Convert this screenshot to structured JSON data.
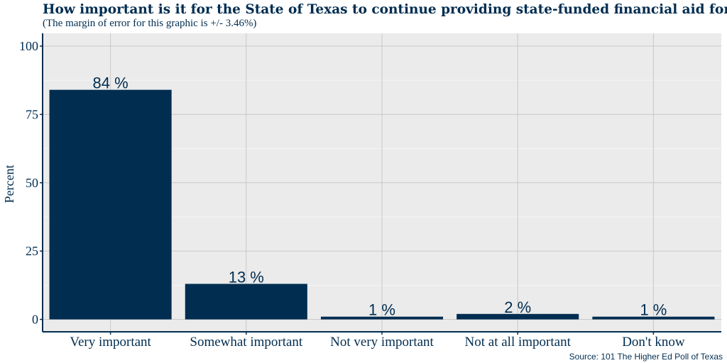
{
  "chart_data": {
    "type": "bar",
    "title": "How important is it for the State of Texas to continue providing state-funded financial aid for college students who",
    "subtitle": "(The margin of error for this graphic is +/- 3.46%)",
    "categories": [
      "Very important",
      "Somewhat important",
      "Not very important",
      "Not at all important",
      "Don't know"
    ],
    "values": [
      84,
      13,
      1,
      2,
      1
    ],
    "data_labels": [
      "84 %",
      "13 %",
      "1 %",
      "2 %",
      "1 %"
    ],
    "xlabel": "",
    "ylabel": "Percent",
    "ylim": [
      0,
      100
    ],
    "yticks": [
      0,
      25,
      50,
      75,
      100
    ],
    "grid": true,
    "source": "Source: 101 The Higher Ed Poll of Texas",
    "colors": {
      "bar": "#002d50",
      "panel": "#ebebeb",
      "grid": "#c8c8c8",
      "text": "#012d50"
    }
  }
}
